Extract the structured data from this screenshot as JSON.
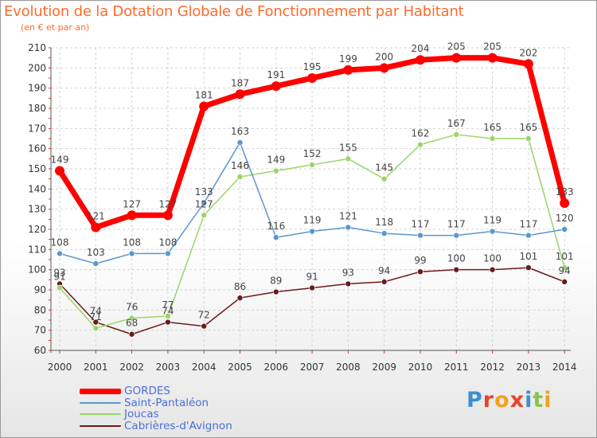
{
  "title": "Evolution de la Dotation Globale de Fonctionnement par Habitant",
  "subtitle": "(en € et par an)",
  "logo": {
    "text": "Proxiti",
    "colors": [
      "#3d8fd1",
      "#e8452c",
      "#f2a21b",
      "#e8452c",
      "#3d8fd1",
      "#8bc34a",
      "#f2a21b"
    ]
  },
  "chart_data": {
    "type": "line",
    "title": "Evolution de la Dotation Globale de Fonctionnement par Habitant",
    "subtitle": "(en € et par an)",
    "xlabel": "",
    "ylabel": "",
    "x": [
      "2000",
      "2001",
      "2002",
      "2003",
      "2004",
      "2005",
      "2006",
      "2007",
      "2008",
      "2009",
      "2010",
      "2011",
      "2012",
      "2013",
      "2014"
    ],
    "ylim": [
      60,
      210
    ],
    "yticks": [
      60,
      70,
      80,
      90,
      100,
      110,
      120,
      130,
      140,
      150,
      160,
      170,
      180,
      190,
      200,
      210
    ],
    "grid": true,
    "legend_position": "bottom-left",
    "series": [
      {
        "name": "Cabrières-d'Avignon",
        "color": "#6b1a1a",
        "values": [
          93,
          74,
          68,
          74,
          72,
          86,
          89,
          91,
          93,
          94,
          99,
          100,
          100,
          101,
          94
        ]
      },
      {
        "name": "Joucas",
        "color": "#9ad56a",
        "values": [
          91,
          71,
          76,
          77,
          127,
          146,
          149,
          152,
          155,
          145,
          162,
          167,
          165,
          165,
          101
        ]
      },
      {
        "name": "Saint-Pantaléon",
        "color": "#5a97cf",
        "values": [
          108,
          103,
          108,
          108,
          133,
          163,
          116,
          119,
          121,
          118,
          117,
          117,
          119,
          117,
          120
        ]
      },
      {
        "name": "GORDES",
        "color": "#ff0000",
        "values": [
          149,
          121,
          127,
          127,
          181,
          187,
          191,
          195,
          199,
          200,
          204,
          205,
          205,
          202,
          133
        ]
      }
    ],
    "legend_order": [
      "GORDES",
      "Saint-Pantaléon",
      "Joucas",
      "Cabrières-d'Avignon"
    ]
  }
}
